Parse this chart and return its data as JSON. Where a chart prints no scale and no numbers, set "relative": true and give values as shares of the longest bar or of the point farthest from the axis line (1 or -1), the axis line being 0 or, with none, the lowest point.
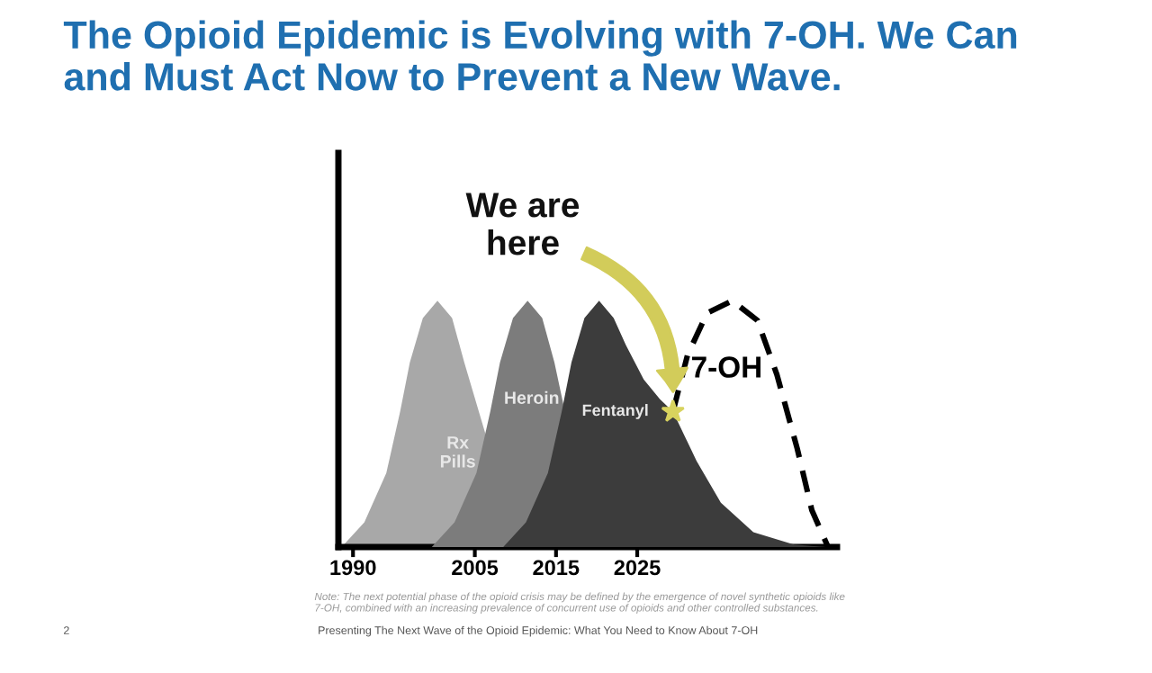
{
  "chart_data": {
    "type": "area",
    "title": "The Opioid Epidemic is Evolving with 7-OH. We Can\nand Must Act Now to Prevent a New Wave.",
    "relative": true,
    "xlim": [
      1988.2,
      2049.6
    ],
    "xticks": [
      1990,
      2005,
      2015,
      2025
    ],
    "grid": false,
    "legend": false,
    "series": [
      {
        "name": "Rx\nPills",
        "color": "#a8a8a8",
        "x": [
          1988.6,
          1991.4,
          1994.1,
          1995.8,
          1997.0,
          1998.6,
          2000.4,
          2002.2,
          2003.7,
          2006.3
        ],
        "values": [
          0,
          0.1,
          0.3,
          0.55,
          0.75,
          0.93,
          1,
          0.93,
          0.75,
          0.46
        ]
      },
      {
        "name": "Heroin",
        "color": "#7c7c7c",
        "x": [
          1999.7,
          2002.5,
          2005.2,
          2006.9,
          2008.1,
          2009.7,
          2011.5,
          2013.3,
          2014.8,
          2015.9
        ],
        "values": [
          0,
          0.1,
          0.3,
          0.55,
          0.75,
          0.93,
          1,
          0.93,
          0.75,
          0.58
        ]
      },
      {
        "name": "Fentanyl",
        "color": "#3c3c3c",
        "x": [
          2008.5,
          2011.3,
          2014.0,
          2015.7,
          2016.9,
          2018.5,
          2020.3,
          2022.1,
          2023.6,
          2025.8,
          2027.8,
          2029.4,
          2032.3,
          2035.3,
          2039.3,
          2044.3,
          2048.3
        ],
        "values": [
          0,
          0.1,
          0.3,
          0.55,
          0.75,
          0.93,
          1,
          0.93,
          0.82,
          0.68,
          0.6,
          0.55,
          0.35,
          0.18,
          0.06,
          0.01,
          0
        ]
      },
      {
        "name": "7-OH",
        "type": "line",
        "line_style": "dashed",
        "color": "#000000",
        "x": [
          2029.4,
          2031.2,
          2033.6,
          2036.7,
          2039.8,
          2042.2,
          2044.7,
          2046.5,
          2048.5
        ],
        "values": [
          0.55,
          0.78,
          0.95,
          1,
          0.92,
          0.7,
          0.4,
          0.15,
          0
        ]
      }
    ],
    "annotations": [
      "We are\nhere",
      "Note: The next potential phase of the opioid crisis may be defined by the emergence of novel synthetic opioids like\n7-OH, combined with an increasing prevalence of concurrent use of opioids and other controlled substances.",
      "2",
      "Presenting The Next Wave of the Opioid Epidemic: What You Need to Know About 7-OH"
    ]
  }
}
